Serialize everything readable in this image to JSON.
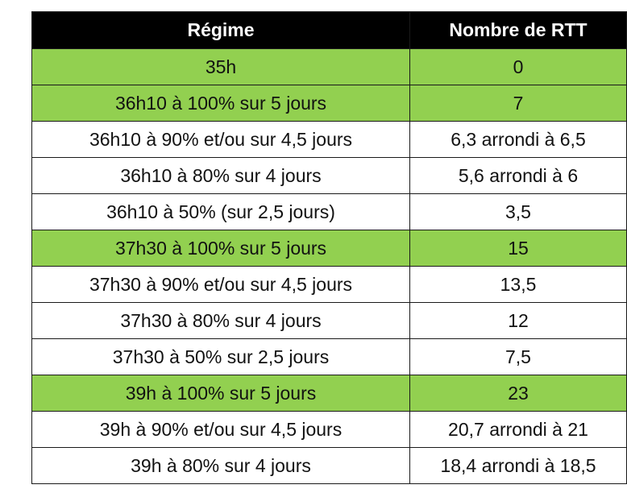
{
  "table": {
    "headers": {
      "regime": "Régime",
      "rtt": "Nombre de RTT"
    },
    "highlight_color": "#92d050",
    "header_background": "#000000",
    "rows": [
      {
        "regime": "35h",
        "rtt": "0",
        "highlighted": true
      },
      {
        "regime": "36h10 à 100% sur 5 jours",
        "rtt": "7",
        "highlighted": true
      },
      {
        "regime": "36h10 à 90% et/ou sur 4,5 jours",
        "rtt": "6,3 arrondi à 6,5",
        "highlighted": false
      },
      {
        "regime": "36h10 à 80% sur 4 jours",
        "rtt": "5,6 arrondi à 6",
        "highlighted": false
      },
      {
        "regime": "36h10 à 50% (sur 2,5 jours)",
        "rtt": "3,5",
        "highlighted": false
      },
      {
        "regime": "37h30 à 100% sur 5 jours",
        "rtt": "15",
        "highlighted": true
      },
      {
        "regime": "37h30 à 90% et/ou sur 4,5 jours",
        "rtt": "13,5",
        "highlighted": false
      },
      {
        "regime": "37h30 à 80% sur 4 jours",
        "rtt": "12",
        "highlighted": false
      },
      {
        "regime": "37h30 à 50% sur 2,5 jours",
        "rtt": "7,5",
        "highlighted": false
      },
      {
        "regime": "39h à 100% sur 5 jours",
        "rtt": "23",
        "highlighted": true
      },
      {
        "regime": "39h à 90% et/ou sur 4,5 jours",
        "rtt": "20,7 arrondi à 21",
        "highlighted": false
      },
      {
        "regime": "39h à 80% sur 4 jours",
        "rtt": "18,4 arrondi à 18,5",
        "highlighted": false
      }
    ]
  }
}
